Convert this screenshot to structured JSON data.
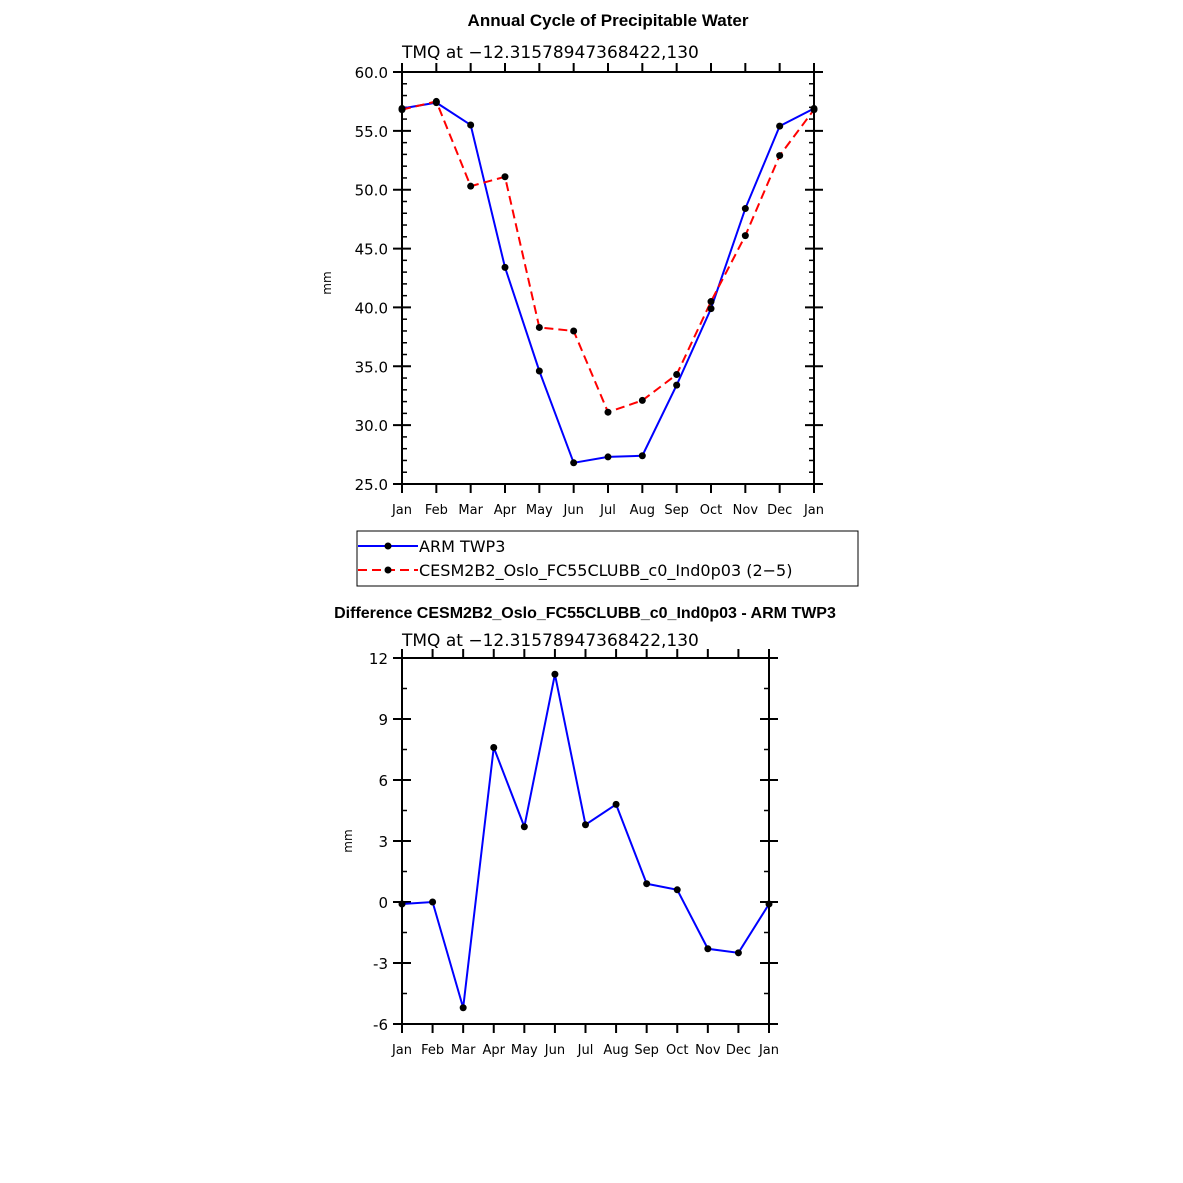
{
  "colors": {
    "arm": "#0000ff",
    "cesm": "#ff0000",
    "diff": "#0000ff",
    "marker": "#000000"
  },
  "chart_data": [
    {
      "type": "line",
      "title": "Annual Cycle of Precipitable Water",
      "subtitle": "TMQ at −12.31578947368422,130",
      "ylabel": "mm",
      "xlabel": "",
      "ylim": [
        25,
        60
      ],
      "yticks": [
        "25.0",
        "30.0",
        "35.0",
        "40.0",
        "45.0",
        "50.0",
        "55.0",
        "60.0"
      ],
      "categories": [
        "Jan",
        "Feb",
        "Mar",
        "Apr",
        "May",
        "Jun",
        "Jul",
        "Aug",
        "Sep",
        "Oct",
        "Nov",
        "Dec",
        "Jan"
      ],
      "grid": false,
      "legend_position": "bottom",
      "series": [
        {
          "name": "ARM TWP3",
          "style": "solid",
          "values": [
            56.9,
            57.4,
            55.5,
            43.4,
            34.6,
            26.8,
            27.3,
            27.4,
            33.4,
            39.9,
            48.4,
            55.4,
            56.9
          ]
        },
        {
          "name": "CESM2B2_Oslo_FC55CLUBB_c0_Ind0p03 (2−5)",
          "style": "dashed",
          "values": [
            56.8,
            57.5,
            50.3,
            51.1,
            38.3,
            38.0,
            31.1,
            32.1,
            34.3,
            40.5,
            46.1,
            52.9,
            56.8
          ]
        }
      ]
    },
    {
      "type": "line",
      "title": "Difference CESM2B2_Oslo_FC55CLUBB_c0_Ind0p03 - ARM TWP3",
      "subtitle": "TMQ at −12.31578947368422,130",
      "ylabel": "mm",
      "xlabel": "",
      "ylim": [
        -6,
        12
      ],
      "yticks": [
        "-6",
        "-3",
        "0",
        "3",
        "6",
        "9",
        "12"
      ],
      "categories": [
        "Jan",
        "Feb",
        "Mar",
        "Apr",
        "May",
        "Jun",
        "Jul",
        "Aug",
        "Sep",
        "Oct",
        "Nov",
        "Dec",
        "Jan"
      ],
      "grid": false,
      "series": [
        {
          "name": "Difference",
          "style": "solid",
          "values": [
            -0.1,
            0.0,
            -5.2,
            7.6,
            3.7,
            11.2,
            3.8,
            4.8,
            0.9,
            0.6,
            -2.3,
            -2.5,
            -0.1
          ]
        }
      ]
    }
  ]
}
